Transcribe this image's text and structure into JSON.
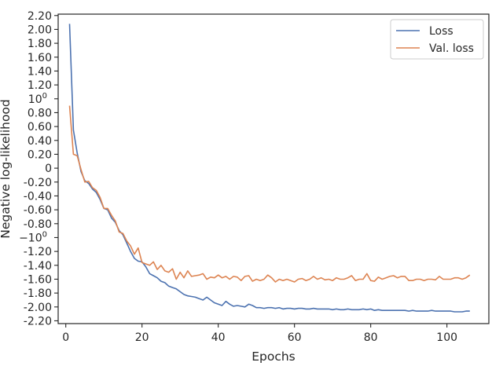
{
  "chart_data": {
    "type": "line",
    "xlabel": "Epochs",
    "ylabel": "Negative log-likelihood",
    "xlim": [
      -2,
      111
    ],
    "ylim": [
      -2.24,
      2.22
    ],
    "x_ticks": [
      {
        "value": 0,
        "label": "0"
      },
      {
        "value": 20,
        "label": "20"
      },
      {
        "value": 40,
        "label": "40"
      },
      {
        "value": 60,
        "label": "60"
      },
      {
        "value": 80,
        "label": "80"
      },
      {
        "value": 100,
        "label": "100"
      }
    ],
    "y_ticks": [
      {
        "value": 2.2,
        "label": "2.20"
      },
      {
        "value": 2.0,
        "label": "2.00"
      },
      {
        "value": 1.8,
        "label": "1.80"
      },
      {
        "value": 1.6,
        "label": "1.60"
      },
      {
        "value": 1.4,
        "label": "1.40"
      },
      {
        "value": 1.2,
        "label": "1.20"
      },
      {
        "value": 1.0,
        "label": "10",
        "sup": "0"
      },
      {
        "value": 0.8,
        "label": "0.80"
      },
      {
        "value": 0.6,
        "label": "0.60"
      },
      {
        "value": 0.4,
        "label": "0.40"
      },
      {
        "value": 0.2,
        "label": "0.20"
      },
      {
        "value": 0.0,
        "label": "0"
      },
      {
        "value": -0.2,
        "label": "-0.20"
      },
      {
        "value": -0.4,
        "label": "-0.40"
      },
      {
        "value": -0.6,
        "label": "-0.60"
      },
      {
        "value": -0.8,
        "label": "-0.80"
      },
      {
        "value": -1.0,
        "label": "−10",
        "sup": "0"
      },
      {
        "value": -1.2,
        "label": "-1.20"
      },
      {
        "value": -1.4,
        "label": "-1.40"
      },
      {
        "value": -1.6,
        "label": "-1.60"
      },
      {
        "value": -1.8,
        "label": "-1.80"
      },
      {
        "value": -2.0,
        "label": "-2.00"
      },
      {
        "value": -2.2,
        "label": "-2.20"
      }
    ],
    "grid": false,
    "legend_position": "top-right",
    "series": [
      {
        "name": "Loss",
        "color": "#4c72b0",
        "x": [
          1,
          2,
          3,
          4,
          5,
          6,
          7,
          8,
          9,
          10,
          11,
          12,
          13,
          14,
          15,
          16,
          17,
          18,
          19,
          20,
          21,
          22,
          23,
          24,
          25,
          26,
          27,
          28,
          29,
          30,
          31,
          32,
          33,
          34,
          35,
          36,
          37,
          38,
          39,
          40,
          41,
          42,
          43,
          44,
          45,
          46,
          47,
          48,
          49,
          50,
          51,
          52,
          53,
          54,
          55,
          56,
          57,
          58,
          59,
          60,
          61,
          62,
          63,
          64,
          65,
          66,
          67,
          68,
          69,
          70,
          71,
          72,
          73,
          74,
          75,
          76,
          77,
          78,
          79,
          80,
          81,
          82,
          83,
          84,
          85,
          86,
          87,
          88,
          89,
          90,
          91,
          92,
          93,
          94,
          95,
          96,
          97,
          98,
          99,
          100,
          101,
          102,
          103,
          104,
          105,
          106
        ],
        "y": [
          2.08,
          0.55,
          0.22,
          -0.05,
          -0.18,
          -0.22,
          -0.3,
          -0.35,
          -0.45,
          -0.58,
          -0.6,
          -0.72,
          -0.78,
          -0.9,
          -0.96,
          -1.08,
          -1.2,
          -1.3,
          -1.34,
          -1.35,
          -1.42,
          -1.52,
          -1.55,
          -1.58,
          -1.63,
          -1.65,
          -1.7,
          -1.72,
          -1.74,
          -1.78,
          -1.82,
          -1.84,
          -1.85,
          -1.86,
          -1.88,
          -1.9,
          -1.86,
          -1.9,
          -1.94,
          -1.96,
          -1.98,
          -1.92,
          -1.96,
          -1.99,
          -1.98,
          -1.99,
          -2.0,
          -1.96,
          -1.98,
          -2.01,
          -2.01,
          -2.02,
          -2.01,
          -2.01,
          -2.02,
          -2.01,
          -2.03,
          -2.02,
          -2.02,
          -2.03,
          -2.02,
          -2.02,
          -2.03,
          -2.03,
          -2.02,
          -2.03,
          -2.03,
          -2.03,
          -2.03,
          -2.04,
          -2.03,
          -2.04,
          -2.04,
          -2.03,
          -2.04,
          -2.04,
          -2.04,
          -2.03,
          -2.04,
          -2.03,
          -2.05,
          -2.04,
          -2.05,
          -2.05,
          -2.05,
          -2.05,
          -2.05,
          -2.05,
          -2.05,
          -2.06,
          -2.05,
          -2.06,
          -2.06,
          -2.06,
          -2.06,
          -2.05,
          -2.06,
          -2.06,
          -2.06,
          -2.06,
          -2.06,
          -2.07,
          -2.07,
          -2.07,
          -2.06,
          -2.06
        ]
      },
      {
        "name": "Val. loss",
        "color": "#dd8452",
        "x": [
          1,
          2,
          3,
          4,
          5,
          6,
          7,
          8,
          9,
          10,
          11,
          12,
          13,
          14,
          15,
          16,
          17,
          18,
          19,
          20,
          21,
          22,
          23,
          24,
          25,
          26,
          27,
          28,
          29,
          30,
          31,
          32,
          33,
          34,
          35,
          36,
          37,
          38,
          39,
          40,
          41,
          42,
          43,
          44,
          45,
          46,
          47,
          48,
          49,
          50,
          51,
          52,
          53,
          54,
          55,
          56,
          57,
          58,
          59,
          60,
          61,
          62,
          63,
          64,
          65,
          66,
          67,
          68,
          69,
          70,
          71,
          72,
          73,
          74,
          75,
          76,
          77,
          78,
          79,
          80,
          81,
          82,
          83,
          84,
          85,
          86,
          87,
          88,
          89,
          90,
          91,
          92,
          93,
          94,
          95,
          96,
          97,
          98,
          99,
          100,
          101,
          102,
          103,
          104,
          105,
          106
        ],
        "y": [
          0.9,
          0.2,
          0.18,
          -0.02,
          -0.2,
          -0.19,
          -0.28,
          -0.32,
          -0.42,
          -0.58,
          -0.58,
          -0.68,
          -0.76,
          -0.92,
          -0.94,
          -1.05,
          -1.12,
          -1.24,
          -1.15,
          -1.36,
          -1.38,
          -1.4,
          -1.35,
          -1.46,
          -1.4,
          -1.48,
          -1.5,
          -1.45,
          -1.6,
          -1.5,
          -1.58,
          -1.48,
          -1.56,
          -1.55,
          -1.54,
          -1.52,
          -1.6,
          -1.57,
          -1.58,
          -1.54,
          -1.58,
          -1.56,
          -1.6,
          -1.56,
          -1.57,
          -1.62,
          -1.56,
          -1.55,
          -1.63,
          -1.6,
          -1.62,
          -1.6,
          -1.54,
          -1.58,
          -1.64,
          -1.6,
          -1.62,
          -1.6,
          -1.62,
          -1.64,
          -1.6,
          -1.59,
          -1.62,
          -1.6,
          -1.56,
          -1.6,
          -1.58,
          -1.61,
          -1.6,
          -1.62,
          -1.58,
          -1.6,
          -1.6,
          -1.58,
          -1.55,
          -1.62,
          -1.6,
          -1.6,
          -1.52,
          -1.62,
          -1.63,
          -1.57,
          -1.6,
          -1.58,
          -1.56,
          -1.55,
          -1.58,
          -1.56,
          -1.56,
          -1.62,
          -1.62,
          -1.6,
          -1.6,
          -1.62,
          -1.6,
          -1.6,
          -1.61,
          -1.56,
          -1.6,
          -1.6,
          -1.6,
          -1.58,
          -1.58,
          -1.6,
          -1.58,
          -1.54
        ]
      }
    ]
  }
}
